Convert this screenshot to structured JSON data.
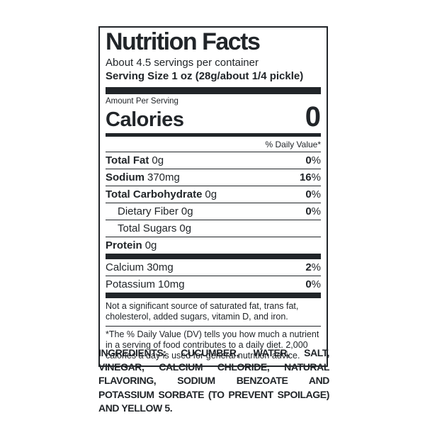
{
  "label": {
    "title": "Nutrition Facts",
    "servings_per_container": "About 4.5 servings per container",
    "serving_size": "Serving Size 1 oz (28g/about 1/4 pickle)",
    "amount_per_serving": "Amount Per Serving",
    "calories_label": "Calories",
    "calories_value": "0",
    "daily_value_header": "% Daily Value*",
    "nutrients": [
      {
        "name": "Total Fat",
        "amount": "0g",
        "dv": {
          "num": "0",
          "sym": "%"
        }
      },
      {
        "name": "Sodium",
        "amount": "370mg",
        "dv": {
          "num": "16",
          "sym": "%"
        }
      },
      {
        "name": "Total Carbohydrate",
        "amount": "0g",
        "dv": {
          "num": "0",
          "sym": "%"
        }
      },
      {
        "name": "Dietary Fiber",
        "amount": "0g",
        "dv": {
          "num": "0",
          "sym": "%"
        }
      },
      {
        "name": "Total Sugars",
        "amount": "0g",
        "dv": {
          "num": "",
          "sym": ""
        }
      },
      {
        "name": "Protein",
        "amount": "0g",
        "dv": {
          "num": "",
          "sym": ""
        }
      }
    ],
    "minerals": [
      {
        "name": "Calcium",
        "amount": "30mg",
        "dv": {
          "num": "2",
          "sym": "%"
        }
      },
      {
        "name": "Potassium",
        "amount": "10mg",
        "dv": {
          "num": "0",
          "sym": "%"
        }
      }
    ],
    "not_significant_note": "Not a significant source of saturated fat, trans fat, cholesterol, added sugars, vitamin D, and iron.",
    "dv_footnote": "*The % Daily Value (DV) tells you how much a nutrient in a serving of food contributes to a daily diet. 2,000 calories a day is used for general nutrition advice."
  },
  "ingredients": {
    "text": "INGREDIENTS: CUCUMBER, WATER, SALT, VINEGAR, CALCIUM CHLORIDE, NATURAL FLAVORING, SODIUM BENZOATE AND POTASSIUM SORBATE (TO PREVENT SPOILAGE) AND YELLOW 5."
  },
  "colors": {
    "text": "#212529",
    "bar": "#212529",
    "background": "#ffffff"
  }
}
